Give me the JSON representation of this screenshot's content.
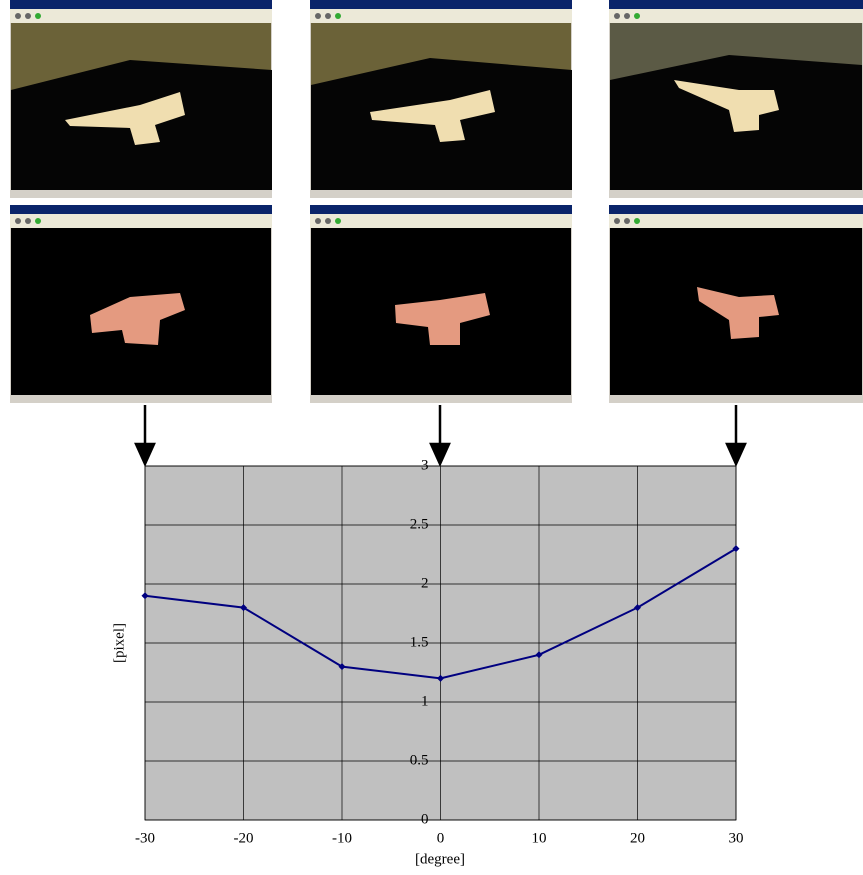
{
  "chart_data": {
    "type": "line",
    "x": [
      -30,
      -20,
      -10,
      0,
      10,
      20,
      30
    ],
    "values": [
      1.9,
      1.8,
      1.3,
      1.2,
      1.4,
      1.8,
      2.3
    ],
    "color": "#000080",
    "xlim": [
      -30,
      30
    ],
    "xticks": [
      -30,
      -20,
      -10,
      0,
      10,
      20,
      30
    ],
    "ylim": [
      0,
      3
    ],
    "yticks": [
      0,
      0.5,
      1,
      1.5,
      2,
      2.5,
      3
    ],
    "x_label": "[degree]",
    "y_label": "[pixel]",
    "grid": true,
    "plot_background": "#c0c0c0"
  }
}
